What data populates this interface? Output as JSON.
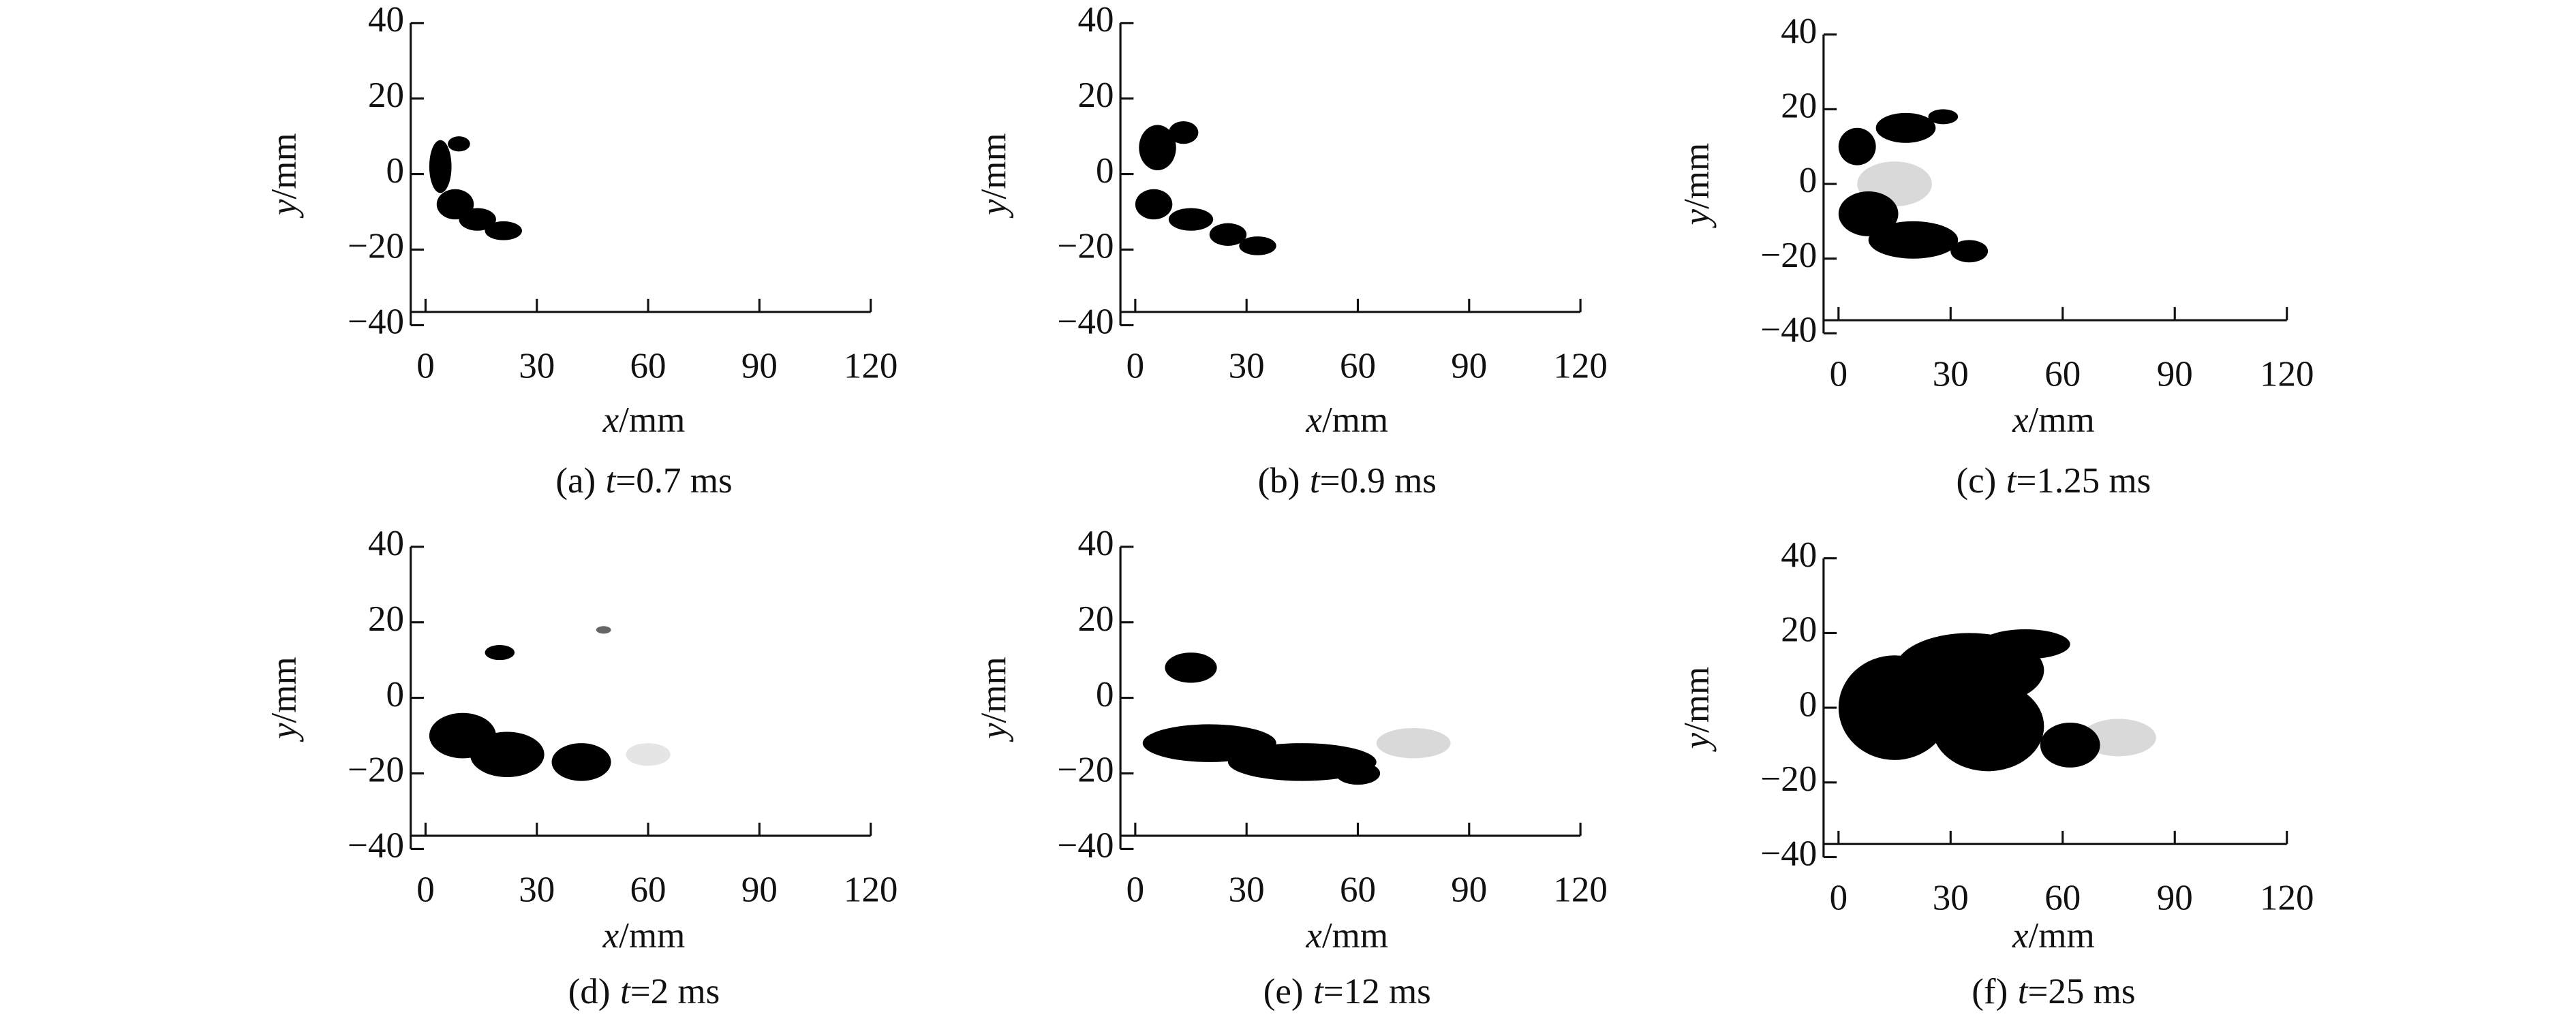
{
  "chart_data": [
    {
      "type": "image",
      "caption": [
        "(a)",
        "t",
        "=0.7 ms"
      ],
      "xlabel": [
        "x",
        "/mm"
      ],
      "ylabel": [
        "y",
        "/mm"
      ],
      "xlim": [
        -4,
        120
      ],
      "ylim": [
        -40,
        40
      ],
      "xticks": [
        0,
        30,
        60,
        90,
        120
      ],
      "yticks": [
        {
          "value": -40,
          "label": "−40"
        },
        {
          "value": -20,
          "label": "−20"
        },
        0,
        20,
        40
      ]
    },
    {
      "type": "image",
      "caption": [
        "(b)",
        "t",
        "=0.9 ms"
      ],
      "xlabel": [
        "x",
        "/mm"
      ],
      "ylabel": [
        "y",
        "/mm"
      ],
      "xlim": [
        -4,
        120
      ],
      "ylim": [
        -40,
        40
      ],
      "xticks": [
        0,
        30,
        60,
        90,
        120
      ],
      "yticks": [
        {
          "value": -40,
          "label": "−40"
        },
        {
          "value": -20,
          "label": "−20"
        },
        0,
        20,
        40
      ]
    },
    {
      "type": "image",
      "caption": [
        "(c)",
        "t",
        "=1.25 ms"
      ],
      "xlabel": [
        "x",
        "/mm"
      ],
      "ylabel": [
        "y",
        "/mm"
      ],
      "xlim": [
        -4,
        120
      ],
      "ylim": [
        -40,
        40
      ],
      "xticks": [
        0,
        30,
        60,
        90,
        120
      ],
      "yticks": [
        {
          "value": -40,
          "label": "−40"
        },
        {
          "value": -20,
          "label": "−20"
        },
        0,
        20,
        40
      ]
    },
    {
      "type": "image",
      "caption": [
        "(d)",
        "t",
        "=2 ms"
      ],
      "xlabel": [
        "x",
        "/mm"
      ],
      "ylabel": [
        "y",
        "/mm"
      ],
      "xlim": [
        -4,
        120
      ],
      "ylim": [
        -40,
        40
      ],
      "xticks": [
        0,
        30,
        60,
        90,
        120
      ],
      "yticks": [
        {
          "value": -40,
          "label": "−40"
        },
        {
          "value": -20,
          "label": "−20"
        },
        0,
        20,
        40
      ]
    },
    {
      "type": "image",
      "caption": [
        "(e)",
        "t",
        "=12 ms"
      ],
      "xlabel": [
        "x",
        "/mm"
      ],
      "ylabel": [
        "y",
        "/mm"
      ],
      "xlim": [
        -4,
        120
      ],
      "ylim": [
        -40,
        40
      ],
      "xticks": [
        0,
        30,
        60,
        90,
        120
      ],
      "yticks": [
        {
          "value": -40,
          "label": "−40"
        },
        {
          "value": -20,
          "label": "−20"
        },
        0,
        20,
        40
      ]
    },
    {
      "type": "image",
      "caption": [
        "(f)",
        "t",
        "=25 ms"
      ],
      "xlabel": [
        "x",
        "/mm"
      ],
      "ylabel": [
        "y",
        "/mm"
      ],
      "xlim": [
        -4,
        120
      ],
      "ylim": [
        -40,
        40
      ],
      "xticks": [
        0,
        30,
        60,
        90,
        120
      ],
      "yticks": [
        {
          "value": -40,
          "label": "−40"
        },
        {
          "value": -20,
          "label": "−20"
        },
        0,
        20,
        40
      ]
    }
  ]
}
